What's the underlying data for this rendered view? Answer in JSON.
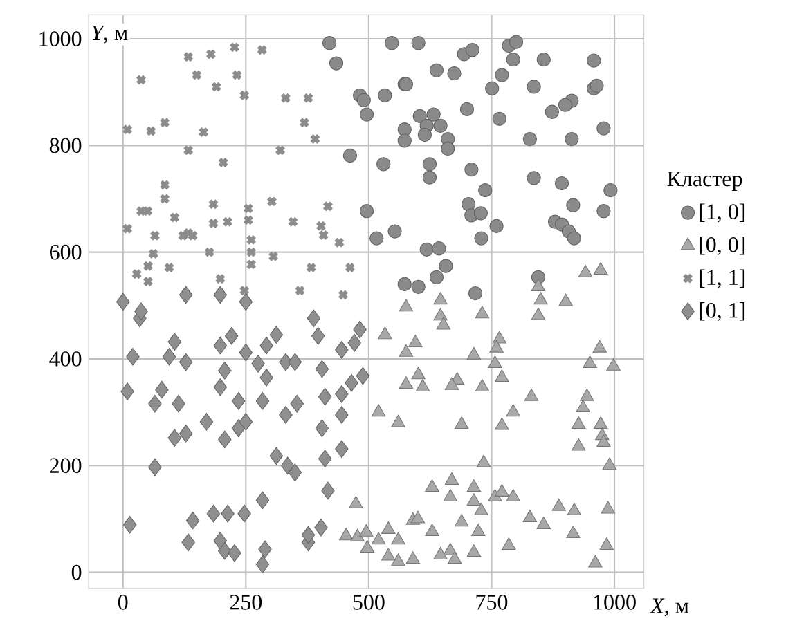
{
  "chart_data": {
    "type": "scatter",
    "xlabel": "*X*, м",
    "ylabel": "*Y*, м",
    "legend_title": "Кластер",
    "legend": "right",
    "grid": true,
    "xlim": [
      -70,
      1060
    ],
    "ylim": [
      -30,
      1045
    ],
    "xticks": [
      0,
      250,
      500,
      750,
      1000
    ],
    "yticks": [
      0,
      200,
      400,
      600,
      800,
      1000
    ],
    "series": [
      {
        "name": "[1, 0]",
        "marker": "circle",
        "color": "#8a8a8a",
        "x": [
          420,
          434,
          482,
          490,
          496,
          533,
          573,
          547,
          462,
          530,
          496,
          516,
          553,
          573,
          601,
          694,
          711,
          785,
          800,
          794,
          856,
          958,
          638,
          674,
          771,
          751,
          836,
          958,
          964,
          913,
          900,
          873,
          978,
          913,
          828,
          766,
          700,
          576,
          604,
          632,
          618,
          646,
          614,
          661,
          661,
          573,
          573,
          624,
          624,
          709,
          737,
          703,
          709,
          728,
          760,
          729,
          836,
          893,
          916,
          992,
          978,
          879,
          893,
          907,
          918,
          618,
          643,
          657,
          638,
          601,
          717,
          845
        ],
        "values": [
          992,
          954,
          894,
          885,
          858,
          894,
          915,
          992,
          781,
          765,
          677,
          626,
          639,
          540,
          992,
          971,
          979,
          987,
          994,
          961,
          961,
          959,
          941,
          935,
          932,
          907,
          910,
          907,
          912,
          884,
          876,
          863,
          832,
          812,
          812,
          850,
          868,
          915,
          855,
          858,
          837,
          837,
          820,
          812,
          794,
          830,
          809,
          765,
          740,
          755,
          716,
          690,
          669,
          673,
          649,
          626,
          739,
          729,
          688,
          716,
          677,
          657,
          652,
          639,
          626,
          605,
          607,
          574,
          553,
          535,
          523,
          553
        ]
      },
      {
        "name": "[0, 0]",
        "marker": "triangle",
        "color": "#a8a8a8",
        "x": [
          576,
          646,
          646,
          731,
          845,
          850,
          901,
          941,
          972,
          845,
          595,
          652,
          714,
          766,
          760,
          757,
          771,
          680,
          669,
          731,
          610,
          601,
          831,
          794,
          771,
          689,
          970,
          950,
          998,
          944,
          936,
          927,
          972,
          975,
          978,
          927,
          990,
          734,
          629,
          669,
          666,
          714,
          714,
          729,
          757,
          771,
          794,
          828,
          856,
          887,
          918,
          987,
          916,
          984,
          961,
          590,
          629,
          689,
          723,
          646,
          666,
          675,
          714,
          785,
          590,
          474,
          454,
          477,
          495,
          497,
          533,
          576,
          576,
          540,
          520,
          560,
          540,
          560,
          600,
          520,
          560
        ],
        "values": [
          497,
          510,
          480,
          484,
          481,
          510,
          507,
          561,
          566,
          535,
          430,
          463,
          407,
          437,
          420,
          391,
          365,
          360,
          350,
          347,
          347,
          370,
          329,
          300,
          275,
          277,
          420,
          391,
          386,
          329,
          308,
          277,
          277,
          256,
          243,
          236,
          200,
          205,
          159,
          172,
          141,
          159,
          133,
          115,
          141,
          150,
          141,
          102,
          89,
          123,
          115,
          118,
          72,
          50,
          17,
          97,
          76,
          94,
          76,
          32,
          40,
          24,
          37,
          50,
          24,
          128,
          68,
          66,
          75,
          45,
          445,
          412,
          352,
          80,
          60,
          60,
          30,
          20,
          100,
          300,
          280
        ]
      },
      {
        "name": "[1, 1]",
        "marker": "cross",
        "color": "#8c8c8c",
        "x": [
          37,
          133,
          179,
          227,
          283,
          150,
          190,
          232,
          247,
          331,
          377,
          369,
          391,
          9,
          57,
          85,
          164,
          133,
          204,
          320,
          85,
          85,
          37,
          50,
          9,
          105,
          133,
          184,
          184,
          213,
          255,
          255,
          303,
          346,
          417,
          403,
          408,
          440,
          65,
          122,
          142,
          176,
          62,
          51,
          28,
          51,
          94,
          261,
          261,
          261,
          306,
          383,
          462,
          360,
          448,
          198,
          247
        ],
        "values": [
          923,
          966,
          971,
          984,
          979,
          932,
          910,
          932,
          894,
          889,
          889,
          843,
          812,
          830,
          827,
          843,
          825,
          791,
          768,
          791,
          726,
          700,
          677,
          677,
          644,
          665,
          636,
          690,
          654,
          657,
          682,
          660,
          695,
          657,
          686,
          649,
          632,
          618,
          631,
          631,
          631,
          600,
          597,
          574,
          559,
          545,
          571,
          623,
          600,
          577,
          592,
          571,
          571,
          528,
          520,
          550,
          528
        ]
      },
      {
        "name": "[0, 1]",
        "marker": "diamond",
        "color": "#8f8f8f",
        "x": [
          34,
          0,
          37,
          128,
          198,
          250,
          388,
          105,
          20,
          94,
          128,
          198,
          221,
          250,
          292,
          312,
          397,
          482,
          445,
          471,
          207,
          275,
          292,
          331,
          350,
          405,
          488,
          9,
          79,
          113,
          65,
          198,
          235,
          284,
          331,
          354,
          411,
          445,
          445,
          465,
          170,
          207,
          235,
          250,
          105,
          128,
          405,
          445,
          411,
          312,
          335,
          350,
          65,
          417,
          284,
          247,
          14,
          142,
          184,
          213,
          133,
          198,
          207,
          227,
          289,
          284,
          377,
          403,
          377
        ],
        "values": [
          476,
          507,
          489,
          520,
          520,
          507,
          476,
          432,
          404,
          404,
          394,
          425,
          443,
          412,
          425,
          445,
          443,
          455,
          417,
          430,
          378,
          391,
          365,
          394,
          394,
          381,
          368,
          339,
          342,
          316,
          316,
          347,
          321,
          321,
          295,
          316,
          329,
          334,
          295,
          355,
          282,
          249,
          270,
          282,
          252,
          260,
          270,
          231,
          213,
          218,
          200,
          187,
          197,
          153,
          135,
          110,
          89,
          97,
          110,
          110,
          56,
          59,
          40,
          36,
          43,
          15,
          56,
          84,
          70
        ]
      }
    ]
  }
}
